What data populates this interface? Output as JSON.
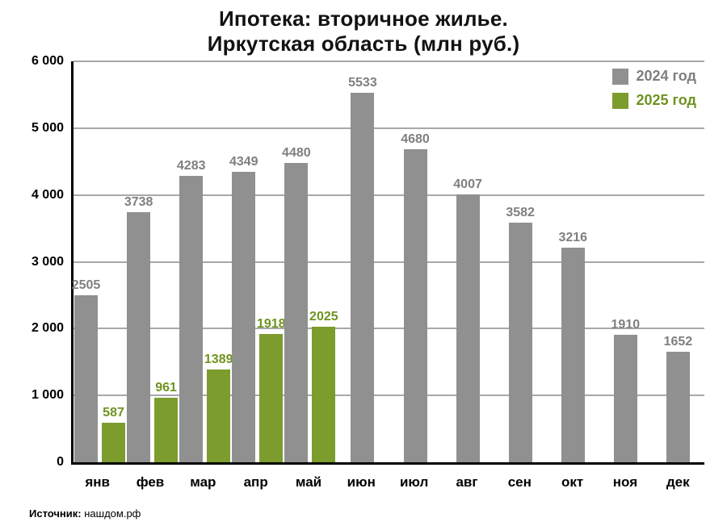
{
  "title": {
    "line1": "Ипотека: вторичное жилье.",
    "line2": "Иркутская область (млн руб.)"
  },
  "source": {
    "label": "Источник:",
    "value": " нашдом.рф"
  },
  "colors": {
    "series_2024": "#909090",
    "series_2024_label": "#7f7f7f",
    "series_2025": "#7d9c2e",
    "series_2025_label": "#6f9320",
    "axis": "#000000",
    "gridline": "#a8a8a8"
  },
  "chart_data": {
    "type": "bar",
    "title": "Ипотека: вторичное жилье. Иркутская область (млн руб.)",
    "categories": [
      "янв",
      "фев",
      "мар",
      "апр",
      "май",
      "июн",
      "июл",
      "авг",
      "сен",
      "окт",
      "ноя",
      "дек"
    ],
    "series": [
      {
        "name": "2024 год",
        "color": "#909090",
        "label_color": "#7f7f7f",
        "values": [
          2505,
          3738,
          4283,
          4349,
          4480,
          5533,
          4680,
          4007,
          3582,
          3216,
          1910,
          1652
        ]
      },
      {
        "name": "2025 год",
        "color": "#7d9c2e",
        "label_color": "#6f9320",
        "values": [
          587,
          961,
          1389,
          1918,
          2025,
          null,
          null,
          null,
          null,
          null,
          null,
          null
        ]
      }
    ],
    "xlabel": "",
    "ylabel": "",
    "ylim": [
      0,
      6000
    ],
    "yticks": [
      0,
      1000,
      2000,
      3000,
      4000,
      5000,
      6000
    ],
    "ytick_labels": [
      "0",
      "1 000",
      "2 000",
      "3 000",
      "4 000",
      "5 000",
      "6 000"
    ],
    "grid": true,
    "legend_position": "top-right"
  }
}
